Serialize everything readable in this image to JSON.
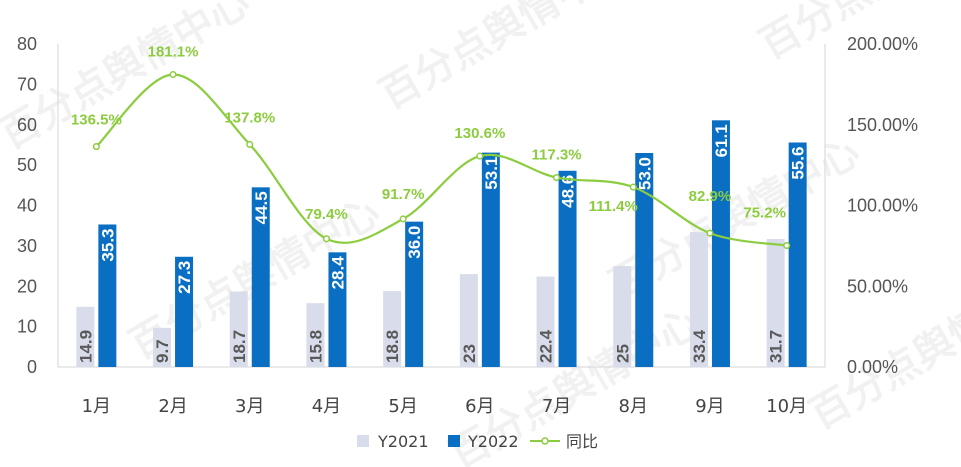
{
  "chart_data": {
    "type": "bar",
    "categories": [
      "1月",
      "2月",
      "3月",
      "4月",
      "5月",
      "6月",
      "7月",
      "8月",
      "9月",
      "10月"
    ],
    "series": [
      {
        "name": "Y2021",
        "type": "bar",
        "color": "#d9dcea",
        "values": [
          14.9,
          9.7,
          18.7,
          15.8,
          18.8,
          23,
          22.4,
          25,
          33.4,
          31.7
        ],
        "labels": [
          "14.9",
          "9.7",
          "18.7",
          "15.8",
          "18.8",
          "23",
          "22.4",
          "25",
          "33.4",
          "31.7"
        ]
      },
      {
        "name": "Y2022",
        "type": "bar",
        "color": "#0a6fc2",
        "values": [
          35.3,
          27.3,
          44.5,
          28.4,
          36.0,
          53.1,
          48.6,
          53.0,
          61.1,
          55.6
        ],
        "labels": [
          "35.3",
          "27.3",
          "44.5",
          "28.4",
          "36.0",
          "53.1",
          "48.6",
          "53.0",
          "61.1",
          "55.6"
        ]
      },
      {
        "name": "同比",
        "type": "line",
        "axis": "right",
        "color": "#8ccc3f",
        "values": [
          136.5,
          181.1,
          137.8,
          79.4,
          91.7,
          130.6,
          117.3,
          111.4,
          82.9,
          75.2
        ],
        "labels": [
          "136.5%",
          "181.1%",
          "137.8%",
          "79.4%",
          "91.7%",
          "130.6%",
          "117.3%",
          "111.4%",
          "82.9%",
          "75.2%"
        ]
      }
    ],
    "y_left": {
      "ylim": [
        0,
        80
      ],
      "ticks": [
        "0",
        "10",
        "20",
        "30",
        "40",
        "50",
        "60",
        "70",
        "80"
      ]
    },
    "y_right": {
      "ylim": [
        0,
        200
      ],
      "ticks": [
        "0.00%",
        "50.00%",
        "100.00%",
        "150.00%",
        "200.00%"
      ]
    },
    "grid": false,
    "legend_position": "bottom",
    "watermark": "百分点舆情中心"
  }
}
